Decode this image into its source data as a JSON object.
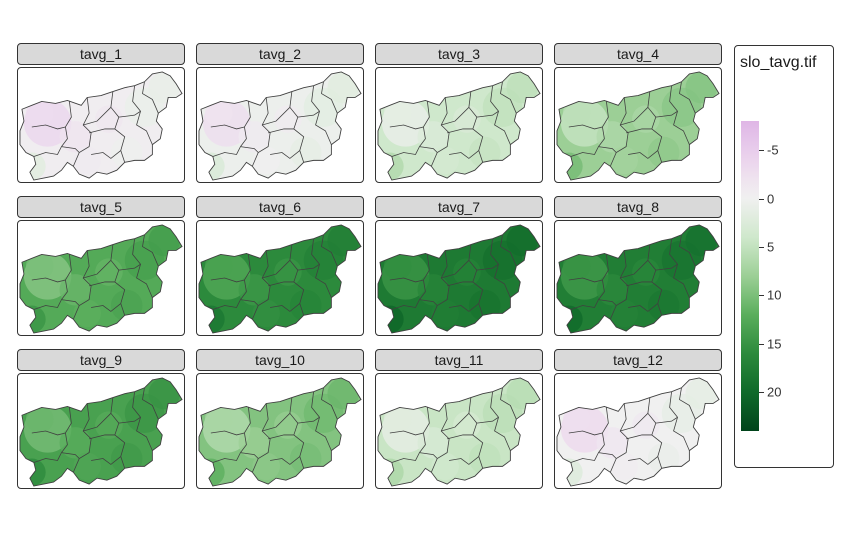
{
  "panels": [
    {
      "label": "tavg_1",
      "mean": -0.5
    },
    {
      "label": "tavg_2",
      "mean": 0.5
    },
    {
      "label": "tavg_3",
      "mean": 4
    },
    {
      "label": "tavg_4",
      "mean": 8
    },
    {
      "label": "tavg_5",
      "mean": 12.5
    },
    {
      "label": "tavg_6",
      "mean": 16
    },
    {
      "label": "tavg_7",
      "mean": 18
    },
    {
      "label": "tavg_8",
      "mean": 17.5
    },
    {
      "label": "tavg_9",
      "mean": 13.5
    },
    {
      "label": "tavg_10",
      "mean": 9.5
    },
    {
      "label": "tavg_11",
      "mean": 4.5
    },
    {
      "label": "tavg_12",
      "mean": 0
    }
  ],
  "legend": {
    "title": "slo_tavg.tif",
    "ticks": [
      "-5",
      "0",
      "5",
      "10",
      "15",
      "20"
    ],
    "tick_values": [
      -5,
      0,
      5,
      10,
      15,
      20
    ],
    "range": [
      -8,
      24
    ]
  },
  "colors": {
    "low": "#e7c9ea",
    "mid": "#f2f2f2",
    "high": "#00441b",
    "border": "#404040"
  }
}
